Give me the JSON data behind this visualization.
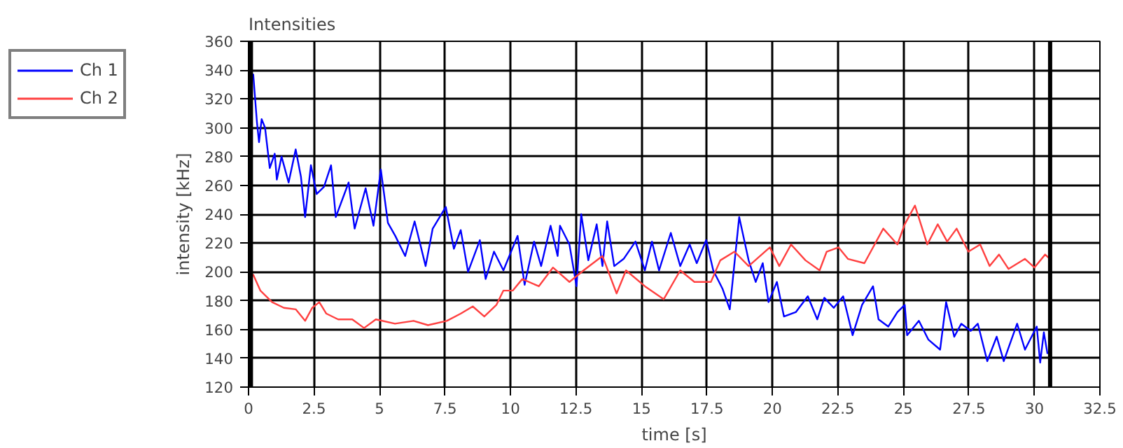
{
  "chart_data": {
    "type": "line",
    "title": "Intensities",
    "xlabel": "time [s]",
    "ylabel": "intensity [kHz]",
    "xlim": [
      0,
      32.5
    ],
    "xticks": [
      0,
      2.5,
      5,
      7.5,
      10,
      12.5,
      15,
      17.5,
      20,
      22.5,
      25,
      27.5,
      30,
      32.5
    ],
    "ylim": [
      120,
      360
    ],
    "yticks": [
      120,
      140,
      160,
      180,
      200,
      220,
      240,
      260,
      280,
      300,
      320,
      340,
      360
    ],
    "grid": true,
    "legend": "top left",
    "marker": "none",
    "line_style": "solid",
    "ref_lines": [
      {
        "axis": "x",
        "value": 0.09,
        "color": "#000000"
      },
      {
        "axis": "x",
        "value": 30.6,
        "color": "#000000"
      }
    ],
    "series": [
      {
        "name": "Ch 1",
        "color": "#0000ff",
        "x": [
          0.04,
          0.18,
          0.32,
          0.4,
          0.5,
          0.63,
          0.81,
          1.0,
          1.08,
          1.26,
          1.53,
          1.8,
          2.0,
          2.16,
          2.38,
          2.6,
          2.88,
          3.15,
          3.33,
          3.82,
          4.05,
          4.47,
          4.77,
          5.05,
          5.32,
          5.6,
          5.98,
          6.34,
          6.76,
          7.03,
          7.53,
          7.84,
          8.1,
          8.38,
          8.83,
          9.05,
          9.37,
          9.73,
          10.27,
          10.54,
          10.9,
          11.17,
          11.53,
          11.8,
          11.89,
          12.25,
          12.52,
          12.7,
          12.97,
          13.29,
          13.51,
          13.69,
          13.96,
          14.32,
          14.77,
          15.13,
          15.4,
          15.67,
          16.12,
          16.48,
          16.84,
          17.11,
          17.47,
          17.74,
          18.1,
          18.37,
          18.73,
          19.09,
          19.36,
          19.63,
          19.85,
          20.17,
          20.44,
          20.89,
          21.35,
          21.71,
          21.98,
          22.34,
          22.7,
          23.06,
          23.42,
          23.84,
          24.05,
          24.42,
          24.77,
          25.05,
          25.14,
          25.59,
          25.95,
          26.4,
          26.63,
          26.94,
          27.21,
          27.57,
          27.84,
          28.2,
          28.56,
          28.83,
          29.34,
          29.64,
          30.09,
          30.22,
          30.36,
          30.5
        ],
        "values": [
          327,
          337,
          304,
          290,
          306,
          300,
          272,
          282,
          264,
          280,
          262,
          285,
          266,
          238,
          274,
          254,
          259,
          274,
          238,
          262,
          230,
          258,
          232,
          271,
          234,
          225,
          211,
          235,
          204,
          230,
          245,
          216,
          229,
          200,
          222,
          195,
          214,
          201,
          225,
          191,
          221,
          204,
          232,
          211,
          232,
          219,
          190,
          240,
          208,
          233,
          204,
          235,
          204,
          209,
          221,
          201,
          221,
          201,
          227,
          204,
          219,
          206,
          222,
          201,
          188,
          174,
          238,
          208,
          193,
          206,
          179,
          193,
          169,
          172,
          183,
          167,
          182,
          175,
          183,
          156,
          177,
          190,
          167,
          162,
          172,
          177,
          156,
          166,
          153,
          146,
          179,
          155,
          164,
          159,
          164,
          138,
          155,
          138,
          164,
          146,
          162,
          137,
          158,
          143
        ]
      },
      {
        "name": "Ch 2",
        "color": "#ff4040",
        "x": [
          0.04,
          0.18,
          0.45,
          0.9,
          1.35,
          1.8,
          2.16,
          2.43,
          2.7,
          2.97,
          3.42,
          3.96,
          4.41,
          4.86,
          5.59,
          6.3,
          6.85,
          7.57,
          8.1,
          8.56,
          9.0,
          9.46,
          9.73,
          10.09,
          10.45,
          11.08,
          11.62,
          12.25,
          12.79,
          13.51,
          14.05,
          14.41,
          15.13,
          15.85,
          16.48,
          17.02,
          17.65,
          18.01,
          18.55,
          19.09,
          19.9,
          20.26,
          20.71,
          21.26,
          21.8,
          22.07,
          22.52,
          22.88,
          23.51,
          24.23,
          24.77,
          25.05,
          25.44,
          25.91,
          26.31,
          26.67,
          27.03,
          27.48,
          27.93,
          28.29,
          28.65,
          29.01,
          29.64,
          30.0,
          30.41,
          30.59
        ],
        "values": [
          195,
          198,
          187,
          179,
          175,
          174,
          166,
          175,
          179,
          171,
          167,
          167,
          161,
          167,
          164,
          166,
          163,
          166,
          171,
          176,
          169,
          177,
          187,
          187,
          195,
          190,
          203,
          193,
          201,
          211,
          185,
          201,
          190,
          181,
          201,
          193,
          193,
          208,
          214,
          204,
          217,
          204,
          219,
          208,
          201,
          214,
          217,
          209,
          206,
          230,
          219,
          233,
          246,
          219,
          233,
          221,
          230,
          214,
          219,
          204,
          212,
          202,
          209,
          203,
          212,
          209
        ]
      }
    ]
  }
}
